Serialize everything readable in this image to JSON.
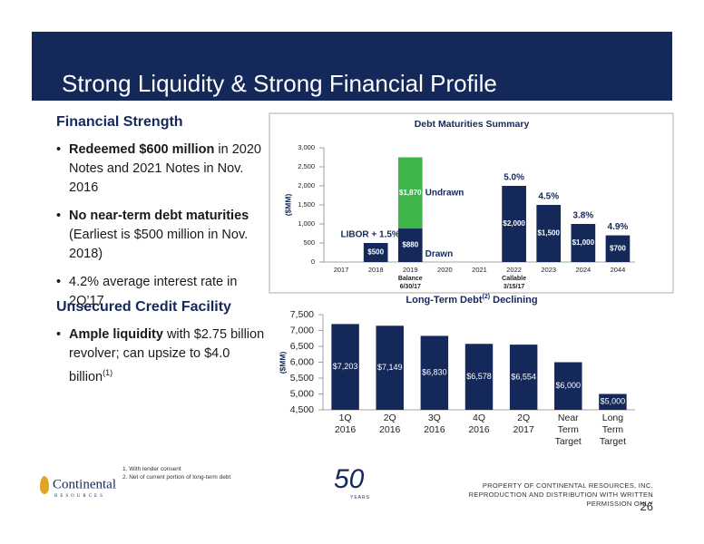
{
  "header": {
    "title": "Strong Liquidity & Strong Financial Profile"
  },
  "sections": [
    {
      "heading": "Financial Strength",
      "bullets": [
        {
          "bold": "Redeemed $600 million",
          "text": " in 2020 Notes and 2021 Notes in Nov. 2016"
        },
        {
          "bold": "No near-term debt maturities",
          "text": " (Earliest is $500 million in Nov. 2018)"
        },
        {
          "bold": "",
          "text": "4.2% average interest rate in 2Q’17"
        }
      ]
    },
    {
      "heading": "Unsecured Credit Facility",
      "bullets": [
        {
          "bold": "Ample liquidity",
          "text": " with $2.75 billion revolver; can upsize to $4.0 billion",
          "sup": "(1)"
        }
      ]
    }
  ],
  "footnotes": [
    "1. With lender consent",
    "2. Net of current portion of long-term debt"
  ],
  "logo": {
    "name": "Continental",
    "sub": "RESOURCES",
    "anniversary": "50",
    "anniversary_sub": "YEARS"
  },
  "footer": {
    "notice": "PROPERTY OF CONTINENTAL RESOURCES, INC. REPRODUCTION AND DISTRIBUTION WITH WRITTEN PERMISSION ONLY",
    "page": "26"
  },
  "chart_data": [
    {
      "type": "bar",
      "title": "Debt Maturities Summary",
      "y_label": "($MM)",
      "categories": [
        "2017",
        "2018",
        "2019",
        "2020",
        "2021",
        "2022",
        "2023",
        "2024",
        "2044"
      ],
      "series": [
        {
          "name": "Drawn",
          "color": "#14285a",
          "values": [
            null,
            500,
            880,
            null,
            null,
            2000,
            1500,
            1000,
            700
          ],
          "value_labels": [
            null,
            "$500",
            "$880",
            null,
            null,
            "$2,000",
            "$1,500",
            "$1,000",
            "$700"
          ]
        },
        {
          "name": "Undrawn",
          "color": "#3db54a",
          "values": [
            null,
            null,
            1870,
            null,
            null,
            null,
            null,
            null,
            null
          ],
          "value_labels": [
            null,
            null,
            "$1,870",
            null,
            null,
            null,
            null,
            null,
            null
          ]
        }
      ],
      "rate_labels": [
        null,
        "LIBOR + 1.5%",
        null,
        null,
        null,
        "5.0%",
        "4.5%",
        "3.8%",
        "4.9%"
      ],
      "category_notes": [
        null,
        null,
        [
          "Balance",
          "6/30/17"
        ],
        null,
        null,
        [
          "Callable",
          "3/15/17"
        ],
        null,
        null,
        null
      ],
      "ylim": [
        0,
        3000
      ],
      "yticks": [
        0,
        500,
        {
          "value": 1000,
          "label": "1,000"
        },
        {
          "value": 1500,
          "label": "1,500"
        },
        {
          "value": 2000,
          "label": "2,000"
        },
        {
          "value": 2500,
          "label": "2,500"
        },
        {
          "value": 3000,
          "label": "3,000"
        }
      ]
    },
    {
      "type": "bar",
      "title": "Long-Term Debt",
      "title_sup": "(2)",
      "title_end": " Declining",
      "y_label": "($MM)",
      "categories": [
        "1Q 2016",
        "2Q 2016",
        "3Q 2016",
        "4Q 2016",
        "2Q 2017",
        "Near Term Target",
        "Long Term Target"
      ],
      "values": [
        7203,
        7149,
        6830,
        6578,
        6554,
        6000,
        5000
      ],
      "value_labels": [
        "$7,203",
        "$7,149",
        "$6,830",
        "$6,578",
        "$6,554",
        "$6,000",
        "$5,000"
      ],
      "color": "#14285a",
      "ylim": [
        4500,
        7500
      ],
      "yticks": [
        {
          "value": 4500,
          "label": "4,500"
        },
        {
          "value": 5000,
          "label": "5,000"
        },
        {
          "value": 5500,
          "label": "5,500"
        },
        {
          "value": 6000,
          "label": "6,000"
        },
        {
          "value": 6500,
          "label": "6,500"
        },
        {
          "value": 7000,
          "label": "7,000"
        },
        {
          "value": 7500,
          "label": "7,500"
        }
      ]
    }
  ]
}
